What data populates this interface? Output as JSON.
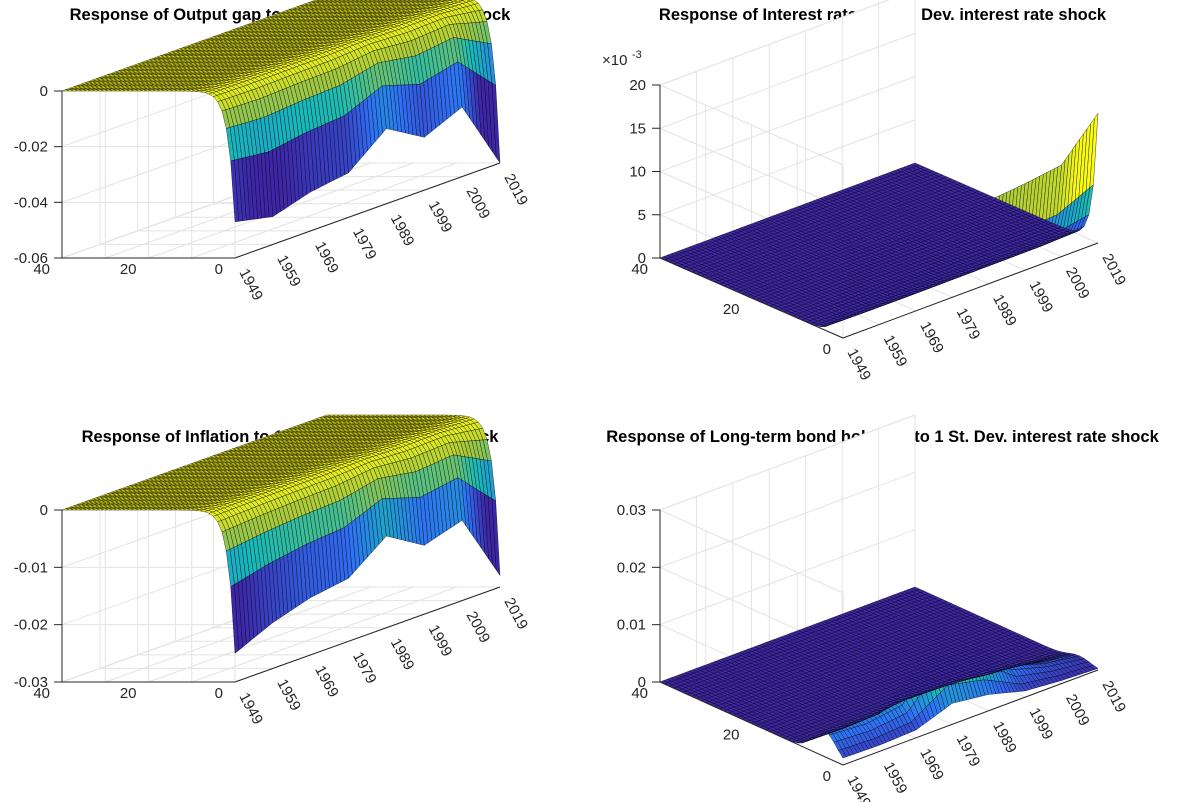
{
  "chart_data": [
    {
      "type": "surface",
      "title": "Response of Output gap to 1 St. Dev. interest rate shock",
      "x_label": "",
      "y_label": "",
      "z_label": "",
      "x_ticks": [
        "1949",
        "1959",
        "1969",
        "1979",
        "1989",
        "1999",
        "2009",
        "2019"
      ],
      "x_range": [
        1949,
        2019
      ],
      "y_ticks": [
        "0",
        "20",
        "40"
      ],
      "y_range": [
        0,
        40
      ],
      "z_ticks": [
        "-0.06",
        "-0.04",
        "-0.02",
        "0"
      ],
      "z_range": [
        -0.06,
        0
      ],
      "z_exponent": "",
      "grid": true,
      "description_points": [
        {
          "year": 1949,
          "horizon0_response": -0.047
        },
        {
          "year": 1959,
          "horizon0_response": -0.05
        },
        {
          "year": 1969,
          "horizon0_response": -0.046
        },
        {
          "year": 1979,
          "horizon0_response": -0.044
        },
        {
          "year": 1989,
          "horizon0_response": -0.033
        },
        {
          "year": 1999,
          "horizon0_response": -0.041
        },
        {
          "year": 2009,
          "horizon0_response": -0.035
        },
        {
          "year": 2019,
          "horizon0_response": -0.06
        }
      ],
      "colormap": "parula"
    },
    {
      "type": "surface",
      "title": "Response of Interest rate to 1 St. Dev. interest rate shock",
      "x_label": "",
      "y_label": "",
      "z_label": "",
      "x_ticks": [
        "1949",
        "1959",
        "1969",
        "1979",
        "1989",
        "1999",
        "2009",
        "2019"
      ],
      "x_range": [
        1949,
        2019
      ],
      "y_ticks": [
        "0",
        "20",
        "40"
      ],
      "y_range": [
        0,
        40
      ],
      "z_ticks": [
        "0",
        "5",
        "10",
        "15",
        "20"
      ],
      "z_range": [
        0,
        20
      ],
      "z_exponent": "×10",
      "z_exponent_power": "-3",
      "grid": true,
      "description_points": [
        {
          "year": 1949,
          "horizon0_response": 10.5
        },
        {
          "year": 1959,
          "horizon0_response": 9.3
        },
        {
          "year": 1969,
          "horizon0_response": 9.0
        },
        {
          "year": 1979,
          "horizon0_response": 9.2
        },
        {
          "year": 1989,
          "horizon0_response": 9.6
        },
        {
          "year": 1999,
          "horizon0_response": 10.0
        },
        {
          "year": 2009,
          "horizon0_response": 10.6
        },
        {
          "year": 2019,
          "horizon0_response": 15.0
        }
      ],
      "colormap": "parula"
    },
    {
      "type": "surface",
      "title": "Response of Inflation to 1 St. Dev. interest rate shock",
      "x_label": "",
      "y_label": "",
      "z_label": "",
      "x_ticks": [
        "1949",
        "1959",
        "1969",
        "1979",
        "1989",
        "1999",
        "2009",
        "2019"
      ],
      "x_range": [
        1949,
        2019
      ],
      "y_ticks": [
        "0",
        "20",
        "40"
      ],
      "y_range": [
        0,
        40
      ],
      "z_ticks": [
        "-0.03",
        "-0.02",
        "-0.01",
        "0"
      ],
      "z_range": [
        -0.03,
        0
      ],
      "z_exponent": "",
      "grid": true,
      "description_points": [
        {
          "year": 1949,
          "horizon0_response": -0.025
        },
        {
          "year": 1959,
          "horizon0_response": -0.022
        },
        {
          "year": 1969,
          "horizon0_response": -0.02
        },
        {
          "year": 1979,
          "horizon0_response": -0.019
        },
        {
          "year": 1989,
          "horizon0_response": -0.014
        },
        {
          "year": 1999,
          "horizon0_response": -0.018
        },
        {
          "year": 2009,
          "horizon0_response": -0.016
        },
        {
          "year": 2019,
          "horizon0_response": -0.028
        }
      ],
      "colormap": "parula"
    },
    {
      "type": "surface",
      "title": "Response of Long-term bond holdings to 1 St. Dev. interest rate shock",
      "x_label": "",
      "y_label": "",
      "z_label": "",
      "x_ticks": [
        "1949",
        "1959",
        "1969",
        "1979",
        "1989",
        "1999",
        "2009",
        "2019"
      ],
      "x_range": [
        1949,
        2019
      ],
      "y_ticks": [
        "0",
        "20",
        "40"
      ],
      "y_range": [
        0,
        40
      ],
      "z_ticks": [
        "0",
        "0.01",
        "0.02",
        "0.03"
      ],
      "z_range": [
        0,
        0.03
      ],
      "z_exponent": "",
      "grid": true,
      "description_points": [
        {
          "year": 1949,
          "peak_response": 0.0045
        },
        {
          "year": 1959,
          "peak_response": 0.004
        },
        {
          "year": 1969,
          "peak_response": 0.005
        },
        {
          "year": 1979,
          "peak_response": 0.0135
        },
        {
          "year": 1989,
          "peak_response": 0.0105
        },
        {
          "year": 1999,
          "peak_response": 0.004
        },
        {
          "year": 2009,
          "peak_response": 0.002
        },
        {
          "year": 2019,
          "peak_response": 0.001
        }
      ],
      "colormap": "parula"
    }
  ]
}
